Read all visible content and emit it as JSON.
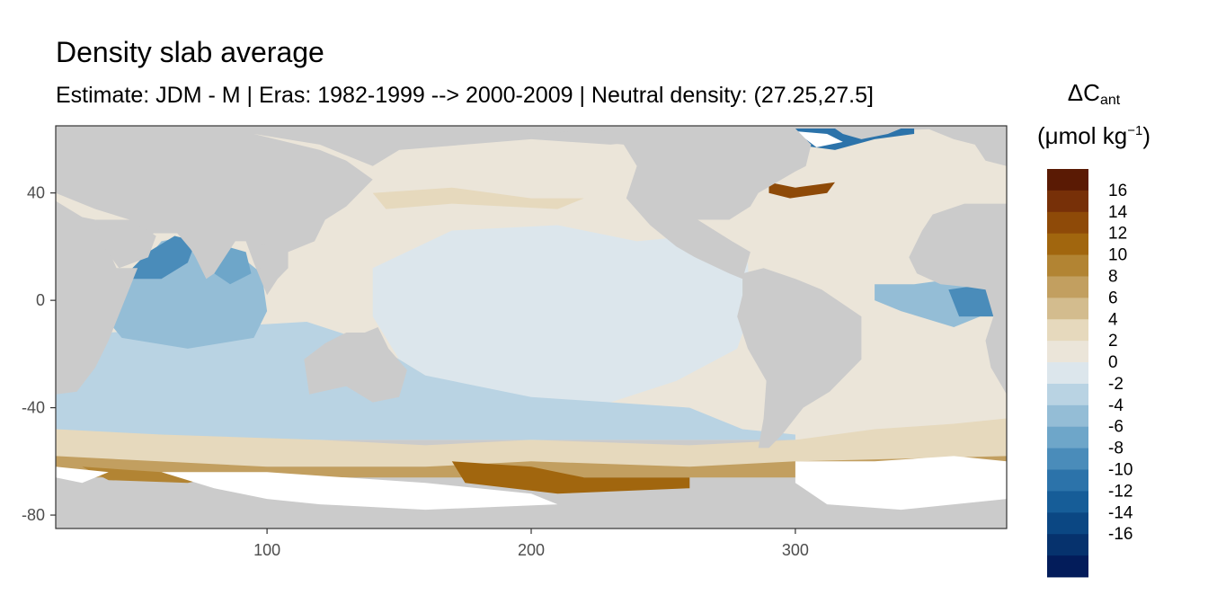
{
  "title": "Density slab average",
  "subtitle": "Estimate: JDM - M | Eras: 1982-1999 --> 2000-2009 | Neutral density: (27.25,27.5]",
  "chart_data": {
    "type": "heatmap",
    "title": "Density slab average",
    "subtitle": "Estimate: JDM - M | Eras: 1982-1999 --> 2000-2009 | Neutral density: (27.25,27.5]",
    "xlabel": "",
    "ylabel": "",
    "xlim": [
      20,
      380
    ],
    "ylim": [
      -85,
      65
    ],
    "x_ticks": [
      100,
      200,
      300
    ],
    "y_ticks": [
      40,
      0,
      -40,
      -80
    ],
    "grid": false,
    "colorbar": {
      "title_main": "ΔC",
      "title_sub": "ant",
      "unit_prefix": "(μmol kg",
      "unit_sup": "−1",
      "unit_suffix": ")",
      "labels": [
        16,
        14,
        12,
        10,
        8,
        6,
        4,
        2,
        0,
        -2,
        -4,
        -6,
        -8,
        -10,
        -12,
        -14,
        -16
      ],
      "colors": [
        "#5a1a04",
        "#773008",
        "#8e4a08",
        "#a1660e",
        "#b28433",
        "#c29f60",
        "#d3bc8e",
        "#e6d9bd",
        "#ebe5d9",
        "#dce6ec",
        "#b9d3e3",
        "#94bdd6",
        "#6ea6c9",
        "#4a8cba",
        "#2c73aa",
        "#165d98",
        "#0b4783",
        "#06326d",
        "#031c5a"
      ]
    },
    "colors": {
      "land": "#cbcbcb",
      "no_data": "#ffffff",
      "ocean_zero": "#ebe5d9",
      "ocean_neg": "#dce6ec",
      "panel_border": "#333333"
    }
  }
}
